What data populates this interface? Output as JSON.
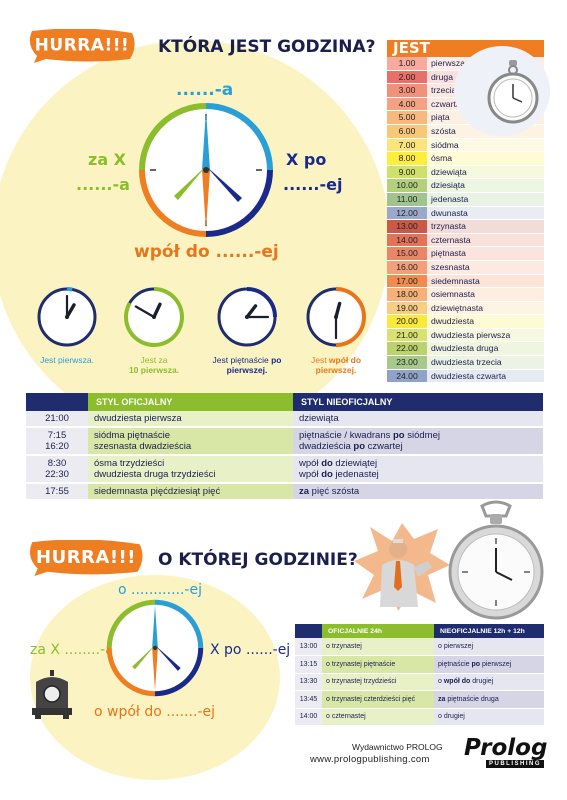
{
  "section1": {
    "badge": "HURRA!!!",
    "title": "KTÓRA JEST GODZINA?",
    "label_top": "......-a",
    "label_left_1": "za X",
    "label_left_2": "......-a",
    "label_right_1": "X po",
    "label_right_2": "......-ej",
    "label_bottom": "wpół do ......-ej"
  },
  "hour_table": {
    "header": "JEST",
    "rows": [
      {
        "num": "1.00",
        "word": "pierwsza",
        "color": "#f5ab9e"
      },
      {
        "num": "2.00",
        "word": "druga",
        "color": "#e8706a"
      },
      {
        "num": "3.00",
        "word": "trzecia",
        "color": "#f09179"
      },
      {
        "num": "4.00",
        "word": "czwarta",
        "color": "#f4a184"
      },
      {
        "num": "5.00",
        "word": "piąta",
        "color": "#f7b980"
      },
      {
        "num": "6.00",
        "word": "szósta",
        "color": "#f8c87a"
      },
      {
        "num": "7.00",
        "word": "siódma",
        "color": "#fbe57a"
      },
      {
        "num": "8.00",
        "word": "ósma",
        "color": "#fdee3d"
      },
      {
        "num": "9.00",
        "word": "dziewiąta",
        "color": "#cfe16b"
      },
      {
        "num": "10.00",
        "word": "dziesiąta",
        "color": "#b1d17c"
      },
      {
        "num": "11.00",
        "word": "jedenasta",
        "color": "#9fc48e"
      },
      {
        "num": "12.00",
        "word": "dwunasta",
        "color": "#9aa9c9"
      },
      {
        "num": "13.00",
        "word": "trzynasta",
        "color": "#c95a48"
      },
      {
        "num": "14.00",
        "word": "czternasta",
        "color": "#e0735a"
      },
      {
        "num": "15.00",
        "word": "piętnasta",
        "color": "#ea8668"
      },
      {
        "num": "16.00",
        "word": "szesnasta",
        "color": "#f1a07a"
      },
      {
        "num": "17.00",
        "word": "siedemnasta",
        "color": "#f28b4e"
      },
      {
        "num": "18.00",
        "word": "osiemnasta",
        "color": "#f6b07a"
      },
      {
        "num": "19.00",
        "word": "dziewiętnasta",
        "color": "#f8cd86"
      },
      {
        "num": "20.00",
        "word": "dwudziesta",
        "color": "#f9e93a"
      },
      {
        "num": "21.00",
        "word": "dwudziesta pierwsza",
        "color": "#d7e36e"
      },
      {
        "num": "22.00",
        "word": "dwudziesta druga",
        "color": "#bcd26c"
      },
      {
        "num": "23.00",
        "word": "dwudziesta trzecia",
        "color": "#a7c98b"
      },
      {
        "num": "24.00",
        "word": "dwudziesta czwarta",
        "color": "#8fa3c8"
      }
    ]
  },
  "small_clocks": [
    {
      "pre": "Jest pierwsza.",
      "mid": "",
      "post": "",
      "line2": "",
      "color": "#2a9fd6",
      "hour": 1,
      "minute": 0
    },
    {
      "pre": "Jest za",
      "mid": "",
      "post": "",
      "line2": "10 pierwsza.",
      "color": "#8cbd2c",
      "hour": 12,
      "minute": 50
    },
    {
      "pre": "Jest piętnaście",
      "mid": "po",
      "post": " pierwszej.",
      "line2": "",
      "color": "#1a2a8a",
      "hour": 1,
      "minute": 15
    },
    {
      "pre": "Jest ",
      "mid": "wpół do",
      "post": "",
      "line2": "pierwszej.",
      "color": "#e8751a",
      "hour": 12,
      "minute": 30
    }
  ],
  "styles_table": {
    "col_official": "STYL OFICJALNY",
    "col_unofficial": "STYL NIEOFICJALNY",
    "rows": [
      {
        "time": "21:00",
        "official": "dwudziesta pierwsza",
        "unofficial": "dziewiąta"
      },
      {
        "time": "7:15\n16:20",
        "official": "siódma piętnaście\nszesnasta dwadzieścia",
        "unofficial": "piętnaście / kwadrans <b>po</b> siódmej\ndwadzieścia <b>po</b> czwartej"
      },
      {
        "time": "8:30\n22:30",
        "official": "ósma trzydzieści\ndwudziesta druga trzydzieści",
        "unofficial": "wpół <b>do</b> dziewiątej\nwpół <b>do</b> jedenastej"
      },
      {
        "time": "17:55",
        "official": "siedemnasta pięćdziesiąt pięć",
        "unofficial": "<b>za</b> pięć szósta"
      }
    ]
  },
  "section2": {
    "badge": "HURRA!!!",
    "title": "O KTÓREJ GODZINIE?",
    "label_top": "o ............-ej",
    "label_left": "za X ........-a",
    "label_right": "X po ......-ej",
    "label_bottom": "o wpół do .......-ej"
  },
  "time_table": {
    "col_official": "OFICJALNIE 24h",
    "col_unofficial": "NIEOFICJALNIE 12h + 12h",
    "rows": [
      {
        "time": "13:00",
        "official": "o trzynastej",
        "unofficial": "o pierwszej"
      },
      {
        "time": "13:15",
        "official": "o trzynastej piętnaście",
        "unofficial": "piętnaście <b>po</b> pierwszej"
      },
      {
        "time": "13:30",
        "official": "o trzynastej trzydzieści",
        "unofficial": "o <b>wpół do</b> drugiej"
      },
      {
        "time": "13:45",
        "official": "o trzynastej czterdzieści pięć",
        "unofficial": "<b>za</b> piętnaście druga"
      },
      {
        "time": "14:00",
        "official": "o czternastej",
        "unofficial": "o drugiej"
      }
    ]
  },
  "footer": {
    "publisher": "Wydawnictwo PROLOG",
    "url": "www.prologpublishing.com",
    "logo": "Prolog",
    "logo_sub": "PUBLISHING"
  },
  "colors": {
    "orange": "#ef7d22",
    "blue": "#2a9fd6",
    "green": "#8cbd2c",
    "navy": "#1a2a8a",
    "header_green": "#8cbd2c",
    "header_navy": "#1f2d6e",
    "cream": "#fbf4c2"
  }
}
